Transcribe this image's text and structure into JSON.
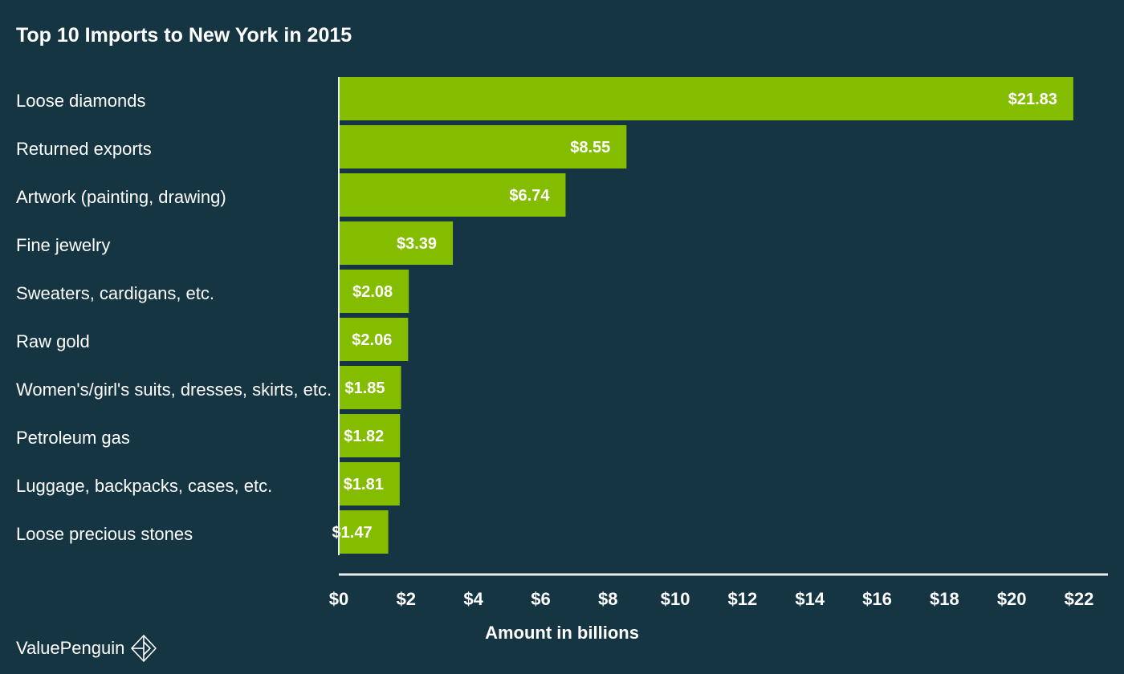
{
  "chart_data": {
    "type": "bar",
    "orientation": "horizontal",
    "title": "Top 10 Imports to New York in 2015",
    "xlabel": "Amount in billions",
    "categories": [
      "Loose diamonds",
      "Returned exports",
      "Artwork (painting, drawing)",
      "Fine jewelry",
      "Sweaters, cardigans, etc.",
      "Raw gold",
      "Women's/girl's suits, dresses, skirts, etc.",
      "Petroleum gas",
      "Luggage, backpacks, cases, etc.",
      "Loose precious stones"
    ],
    "values": [
      21.83,
      8.55,
      6.74,
      3.39,
      2.08,
      2.06,
      1.85,
      1.82,
      1.81,
      1.47
    ],
    "data_labels": [
      "$21.83",
      "$8.55",
      "$6.74",
      "$3.39",
      "$2.08",
      "$2.06",
      "$1.85",
      "$1.82",
      "$1.81",
      "$1.47"
    ],
    "xlim": [
      0,
      22
    ],
    "x_ticks": [
      0,
      2,
      4,
      6,
      8,
      10,
      12,
      14,
      16,
      18,
      20,
      22
    ],
    "x_tick_labels": [
      "$0",
      "$2",
      "$4",
      "$6",
      "$8",
      "$10",
      "$12",
      "$14",
      "$16",
      "$18",
      "$20",
      "$22"
    ],
    "grid": false,
    "legend": "none"
  },
  "colors": {
    "background": "#163543",
    "bar": "#84bd00",
    "axis": "#e8eef0",
    "text": "#ffffff"
  },
  "brand": {
    "name": "ValuePenguin",
    "icon": "diamond-logo-icon"
  }
}
